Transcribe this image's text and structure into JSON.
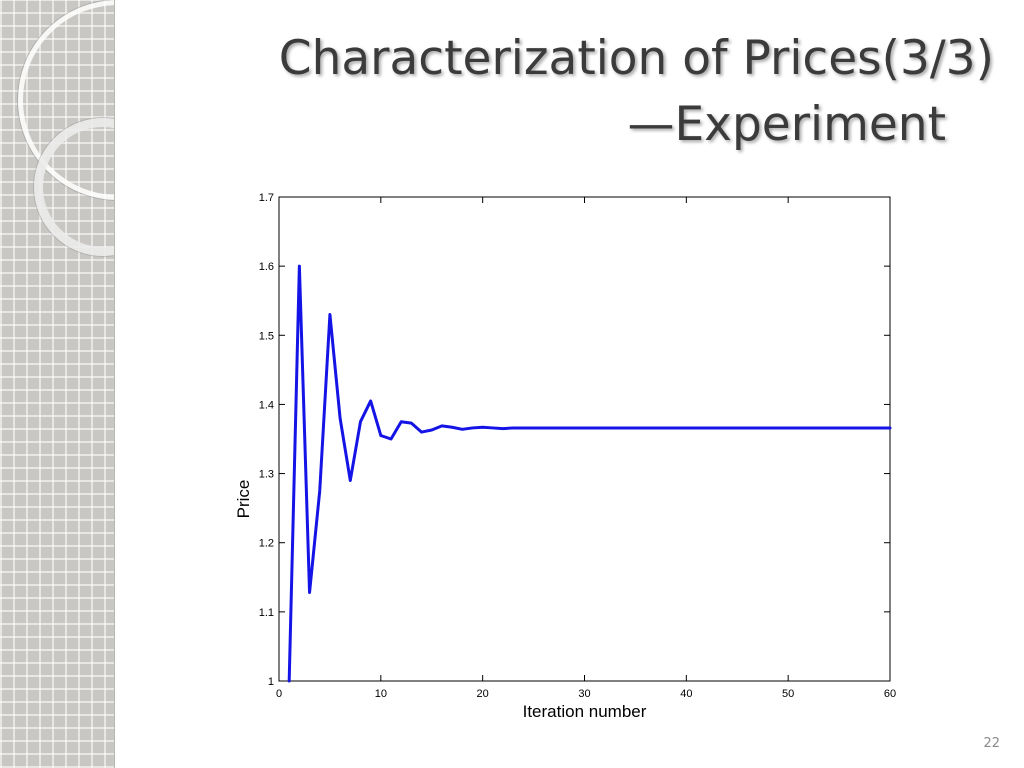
{
  "slide": {
    "title_line_1": "Characterization of Prices(3/3)",
    "title_line_2": "—Experiment",
    "page_number": "22"
  },
  "chart_data": {
    "type": "line",
    "title": "",
    "xlabel": "Iteration number",
    "ylabel": "Price",
    "xlim": [
      0,
      60
    ],
    "ylim": [
      1,
      1.7
    ],
    "x_ticks": [
      0,
      10,
      20,
      30,
      40,
      50,
      60
    ],
    "x_tick_labels": [
      "0",
      "10",
      "20",
      "30",
      "40",
      "50",
      "60"
    ],
    "y_ticks": [
      1,
      1.1,
      1.2,
      1.3,
      1.4,
      1.5,
      1.6,
      1.7
    ],
    "y_tick_labels": [
      "1",
      "1.1",
      "1.2",
      "1.3",
      "1.4",
      "1.5",
      "1.6",
      "1.7"
    ],
    "grid": false,
    "line_color": "#1414e6",
    "series": [
      {
        "x": [
          1,
          2,
          3,
          4,
          5,
          6,
          7,
          8,
          9,
          10,
          11,
          12,
          13,
          14,
          15,
          16,
          17,
          18,
          19,
          20,
          21,
          22,
          23,
          24,
          25,
          26,
          27,
          28,
          29,
          30,
          35,
          40,
          45,
          50,
          55,
          60
        ],
        "values": [
          1.0,
          1.6,
          1.128,
          1.275,
          1.53,
          1.38,
          1.29,
          1.375,
          1.405,
          1.355,
          1.35,
          1.375,
          1.373,
          1.36,
          1.363,
          1.369,
          1.367,
          1.364,
          1.366,
          1.367,
          1.366,
          1.365,
          1.366,
          1.366,
          1.366,
          1.366,
          1.366,
          1.366,
          1.366,
          1.366,
          1.366,
          1.366,
          1.366,
          1.366,
          1.366,
          1.366
        ]
      }
    ]
  }
}
